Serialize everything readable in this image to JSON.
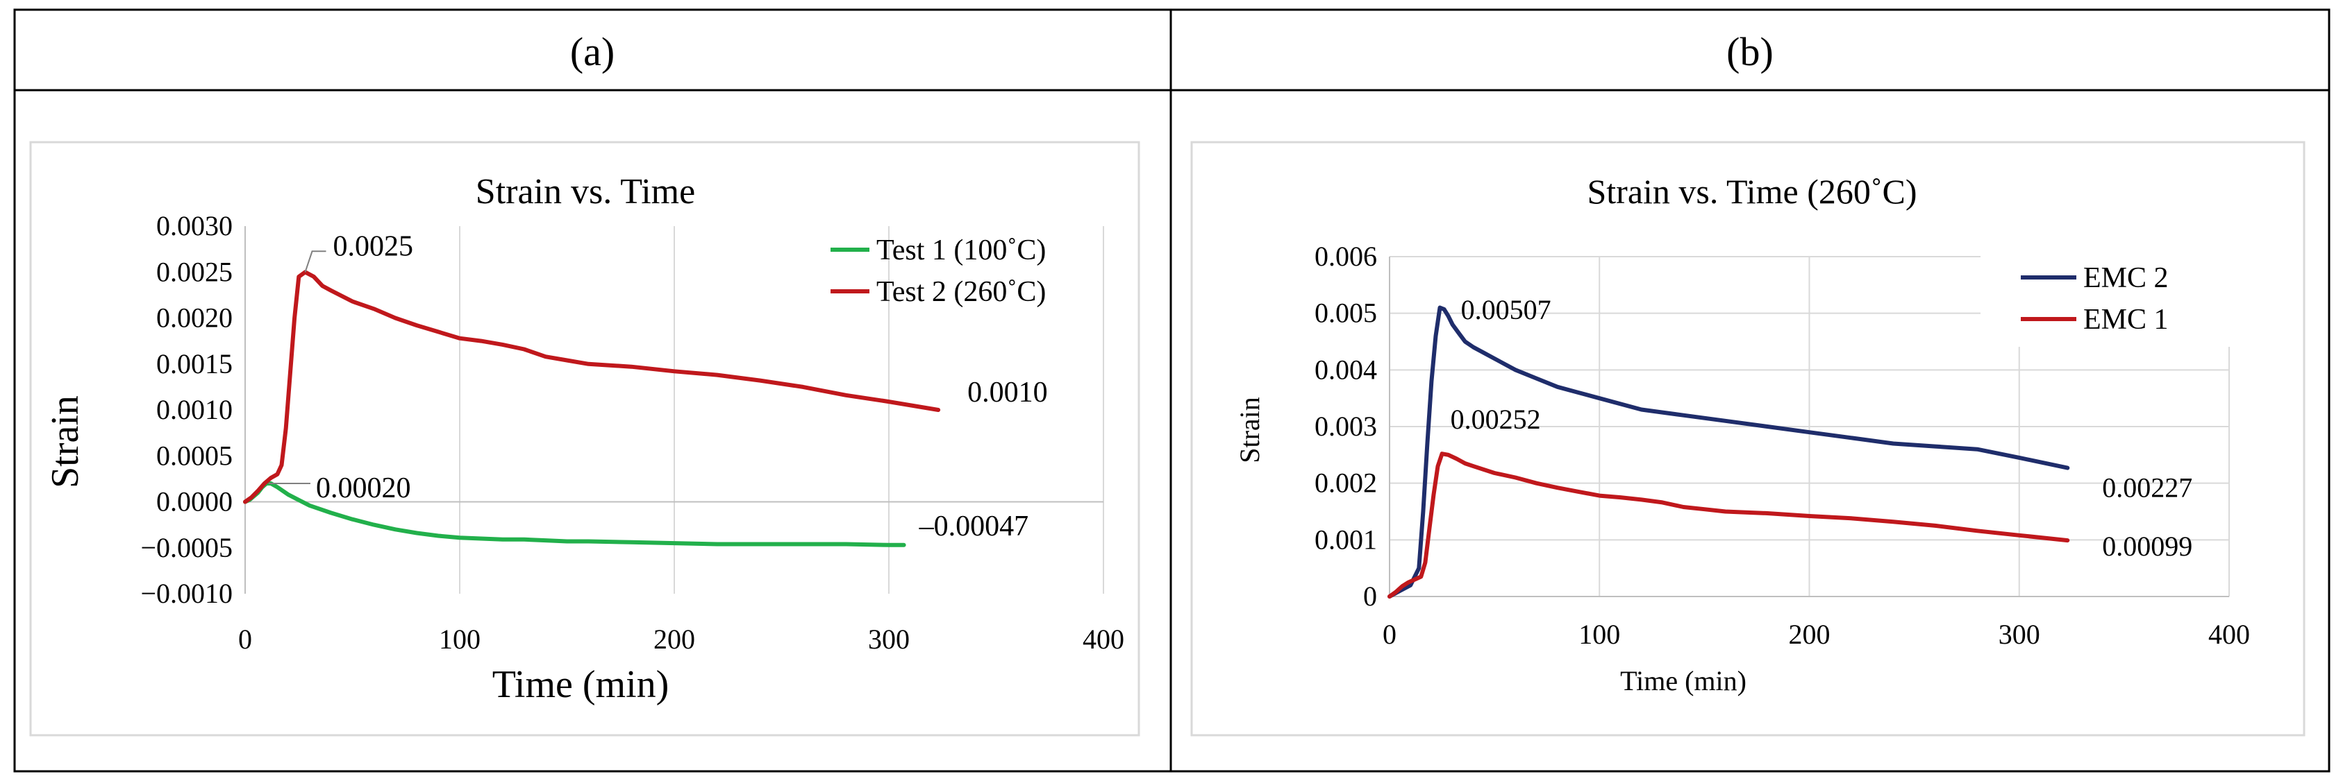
{
  "panels": [
    {
      "label": "(a)"
    },
    {
      "label": "(b)"
    }
  ],
  "chart_data": [
    {
      "type": "line",
      "title": "Strain vs. Time",
      "xlabel": "Time (min)",
      "ylabel": "Strain",
      "xlim": [
        0,
        400
      ],
      "ylim": [
        -0.001,
        0.003
      ],
      "xticks": [
        0,
        100,
        200,
        300,
        400
      ],
      "xtick_labels": [
        "0",
        "100",
        "200",
        "300",
        "400"
      ],
      "yticks": [
        -0.001,
        -0.0005,
        0,
        0.0005,
        0.001,
        0.0015,
        0.002,
        0.0025,
        0.003
      ],
      "ytick_labels": [
        "−0.0010",
        "−0.0005",
        "0.0000",
        "0.0005",
        "0.0010",
        "0.0015",
        "0.0020",
        "0.0025",
        "0.0030"
      ],
      "grid": "vertical",
      "legend_position": "top-right",
      "series": [
        {
          "name": "Test 1 (100˚C)",
          "color": "#22b04b",
          "x": [
            0,
            2,
            4,
            6,
            8,
            10,
            12,
            15,
            20,
            25,
            30,
            40,
            50,
            60,
            70,
            80,
            90,
            100,
            110,
            120,
            130,
            140,
            150,
            160,
            180,
            200,
            220,
            240,
            260,
            280,
            300,
            307
          ],
          "y": [
            0,
            2e-05,
            6e-05,
            0.0001,
            0.00016,
            0.0002,
            0.0002,
            0.00016,
            8e-05,
            2e-05,
            -4e-05,
            -0.00012,
            -0.00019,
            -0.00025,
            -0.0003,
            -0.00034,
            -0.00037,
            -0.00039,
            -0.0004,
            -0.00041,
            -0.00041,
            -0.00042,
            -0.00043,
            -0.00043,
            -0.00044,
            -0.00045,
            -0.00046,
            -0.00046,
            -0.00046,
            -0.00046,
            -0.00047,
            -0.00047
          ]
        },
        {
          "name": "Test 2 (260˚C)",
          "color": "#c0181c",
          "x": [
            0,
            3,
            6,
            9,
            12,
            15,
            17,
            19,
            21,
            23,
            25,
            28,
            32,
            36,
            40,
            50,
            60,
            70,
            80,
            90,
            100,
            110,
            120,
            130,
            140,
            150,
            160,
            180,
            200,
            220,
            240,
            260,
            280,
            300,
            323
          ],
          "y": [
            0,
            5e-05,
            0.00012,
            0.0002,
            0.00026,
            0.0003,
            0.0004,
            0.0008,
            0.0014,
            0.002,
            0.00245,
            0.0025,
            0.00245,
            0.00235,
            0.0023,
            0.00218,
            0.0021,
            0.002,
            0.00192,
            0.00185,
            0.00178,
            0.00175,
            0.00171,
            0.00166,
            0.00158,
            0.00154,
            0.0015,
            0.00147,
            0.00142,
            0.00138,
            0.00132,
            0.00125,
            0.00116,
            0.00109,
            0.001
          ]
        }
      ],
      "annotations": [
        {
          "text": "0.0025",
          "x": 28,
          "y": 0.0025
        },
        {
          "text": "0.00020",
          "x": 11,
          "y": 0.0002
        },
        {
          "text": "0.0010",
          "x": 323,
          "y": 0.001
        },
        {
          "text": "–0.00047",
          "x": 307,
          "y": -0.00047
        }
      ]
    },
    {
      "type": "line",
      "title": "Strain vs. Time (260˚C)",
      "xlabel": "Time (min)",
      "ylabel": "Strain",
      "xlim": [
        0,
        400
      ],
      "ylim": [
        0,
        0.006
      ],
      "xticks": [
        0,
        100,
        200,
        300,
        400
      ],
      "xtick_labels": [
        "0",
        "100",
        "200",
        "300",
        "400"
      ],
      "yticks": [
        0,
        0.001,
        0.002,
        0.003,
        0.004,
        0.005,
        0.006
      ],
      "ytick_labels": [
        "0",
        "0.001",
        "0.002",
        "0.003",
        "0.004",
        "0.005",
        "0.006"
      ],
      "grid": "both",
      "legend_position": "top-right",
      "series": [
        {
          "name": "EMC 2",
          "color": "#1f2d6b",
          "x": [
            0,
            5,
            10,
            14,
            16,
            18,
            20,
            22,
            24,
            26,
            28,
            30,
            33,
            36,
            40,
            45,
            50,
            60,
            70,
            80,
            90,
            100,
            120,
            140,
            160,
            180,
            200,
            220,
            240,
            260,
            280,
            300,
            323
          ],
          "y": [
            0,
            0.0001,
            0.0002,
            0.0005,
            0.0015,
            0.0027,
            0.0038,
            0.0046,
            0.0051,
            0.00507,
            0.00495,
            0.0048,
            0.00465,
            0.0045,
            0.0044,
            0.0043,
            0.0042,
            0.004,
            0.00385,
            0.0037,
            0.0036,
            0.0035,
            0.0033,
            0.0032,
            0.0031,
            0.003,
            0.0029,
            0.0028,
            0.0027,
            0.00265,
            0.0026,
            0.00245,
            0.00227
          ]
        },
        {
          "name": "EMC 1",
          "color": "#c0181c",
          "x": [
            0,
            3,
            6,
            9,
            12,
            15,
            17,
            19,
            21,
            23,
            25,
            28,
            32,
            36,
            40,
            50,
            60,
            70,
            80,
            90,
            100,
            110,
            120,
            130,
            140,
            150,
            160,
            180,
            200,
            220,
            240,
            260,
            280,
            300,
            323
          ],
          "y": [
            0,
            8e-05,
            0.00018,
            0.00025,
            0.0003,
            0.00035,
            0.0006,
            0.0012,
            0.0018,
            0.0023,
            0.00252,
            0.0025,
            0.00243,
            0.00235,
            0.0023,
            0.00218,
            0.0021,
            0.002,
            0.00192,
            0.00185,
            0.00178,
            0.00175,
            0.00171,
            0.00166,
            0.00158,
            0.00154,
            0.0015,
            0.00147,
            0.00142,
            0.00138,
            0.00132,
            0.00125,
            0.00116,
            0.00108,
            0.00099
          ]
        }
      ],
      "annotations": [
        {
          "text": "0.00507",
          "x": 26,
          "y": 0.00507
        },
        {
          "text": "0.00252",
          "x": 25,
          "y": 0.00252
        },
        {
          "text": "0.00227",
          "x": 323,
          "y": 0.00227
        },
        {
          "text": "0.00099",
          "x": 323,
          "y": 0.00099
        }
      ]
    }
  ]
}
